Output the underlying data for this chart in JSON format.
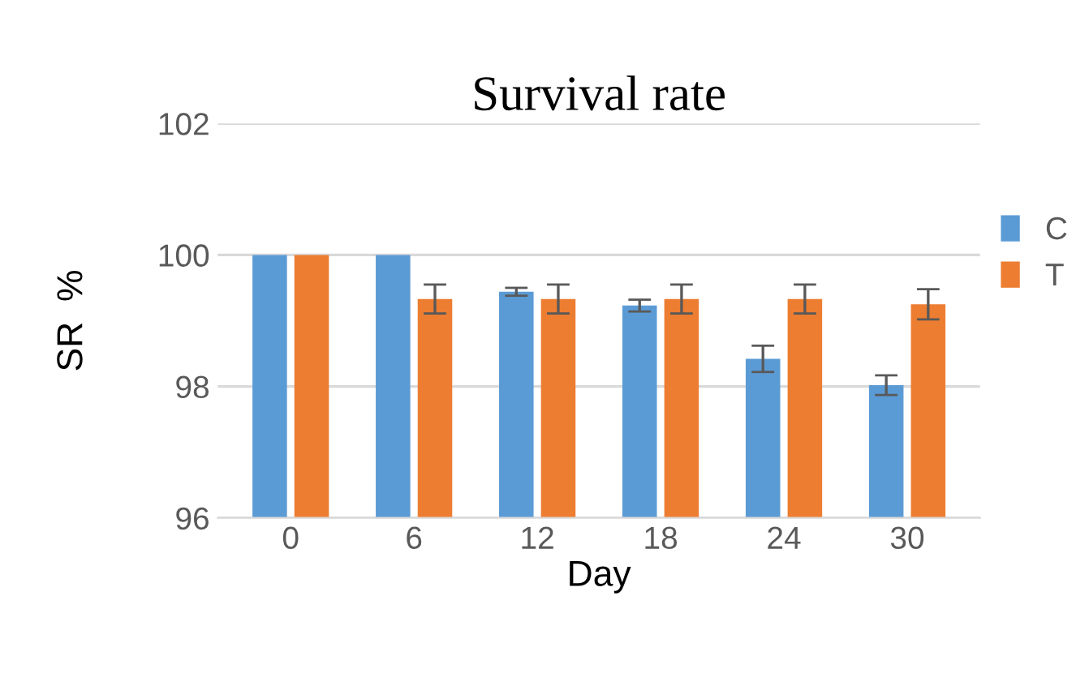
{
  "chart_data": {
    "type": "bar",
    "title": "Survival rate",
    "xlabel": "Day",
    "ylabel": "SR  %",
    "categories": [
      "0",
      "6",
      "12",
      "18",
      "24",
      "30"
    ],
    "series": [
      {
        "name": "C",
        "color": "#5b9bd5",
        "values": [
          100,
          100,
          99.44,
          99.23,
          98.42,
          98.02
        ],
        "errors": [
          null,
          null,
          0.06,
          0.09,
          0.2,
          0.15
        ]
      },
      {
        "name": "T",
        "color": "#ed7d31",
        "values": [
          100,
          99.33,
          99.33,
          99.33,
          99.33,
          99.25
        ],
        "errors": [
          null,
          0.22,
          0.22,
          0.22,
          0.22,
          0.23
        ]
      }
    ],
    "ylim": [
      96,
      102
    ],
    "yticks": [
      96,
      98,
      100,
      102
    ],
    "grid": "y",
    "legend": "right"
  }
}
